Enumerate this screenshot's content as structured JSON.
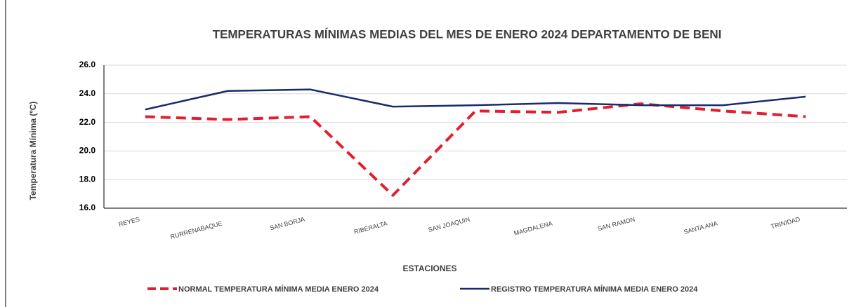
{
  "chart_data": {
    "type": "line",
    "title": "TEMPERATURAS MÍNIMAS MEDIAS DEL MES DE ENERO 2024 DEPARTAMENTO DE BENI",
    "x_label": "ESTACIONES",
    "y_label": "Temperatura Mínima (ºC)",
    "categories": [
      "REYES",
      "RURRENABAQUE",
      "SAN BORJA",
      "RIBERALTA",
      "SAN JOAQUIN",
      "MAGDALENA",
      "SAN RAMON",
      "SANTA ANA",
      "TRINIDAD"
    ],
    "series": [
      {
        "name": "NORMAL TEMPERATURA MÍNIMA MEDIA ENERO 2024",
        "color": "#e0202e",
        "dashed": true,
        "values": [
          22.4,
          22.2,
          22.4,
          16.9,
          22.8,
          22.7,
          23.3,
          22.8,
          22.4
        ]
      },
      {
        "name": "REGISTRO TEMPERATURA MÍNIMA MEDIA ENERO 2024",
        "color": "#1a2a6c",
        "dashed": false,
        "values": [
          22.9,
          24.2,
          24.3,
          23.1,
          23.2,
          23.35,
          23.2,
          23.2,
          23.8
        ]
      }
    ],
    "ylim": [
      16,
      26
    ],
    "yticks": [
      {
        "value": 16,
        "label": "16.0"
      },
      {
        "value": 18,
        "label": "18.0"
      },
      {
        "value": 20,
        "label": "20.0"
      },
      {
        "value": 22,
        "label": "22.0"
      },
      {
        "value": 24,
        "label": "24.0"
      },
      {
        "value": 26,
        "label": "26.0"
      }
    ],
    "grid": true
  }
}
